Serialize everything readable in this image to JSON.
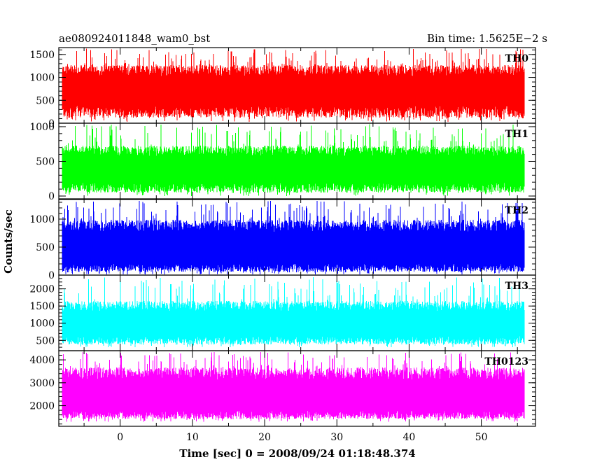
{
  "chart_data": {
    "type": "line",
    "title_left": "ae080924011848_wam0_bst",
    "title_right": "Bin time: 1.5625E−2 s",
    "xlabel": "Time [sec] 0 = 2008/09/24 01:18:48.374",
    "ylabel": "Counts/sec",
    "xlim": [
      -8.5,
      57.5
    ],
    "x_range": [
      -8,
      56
    ],
    "x_ticks": [
      0,
      10,
      20,
      30,
      40,
      50
    ],
    "x_tick_labels": [
      "0",
      "10",
      "20",
      "30",
      "40",
      "50"
    ],
    "colors": [
      "#ff0000",
      "#00ff00",
      "#0000ff",
      "#00ffff",
      "#ff00ff"
    ],
    "panels": [
      {
        "name": "TH0",
        "ylim": [
          0,
          1650
        ],
        "y_ticks": [
          0,
          500,
          1000,
          1500
        ],
        "y_tick_labels": [
          "0",
          "500",
          "1000",
          "1500"
        ],
        "mean": 750,
        "low": 250,
        "high": 1150,
        "min": 30,
        "max": 1630
      },
      {
        "name": "TH1",
        "ylim": [
          -40,
          1050
        ],
        "y_ticks": [
          0,
          500,
          1000
        ],
        "y_tick_labels": [
          "0",
          "500",
          "1000"
        ],
        "mean": 400,
        "low": 120,
        "high": 650,
        "min": 0,
        "max": 1040
      },
      {
        "name": "TH2",
        "ylim": [
          0,
          1350
        ],
        "y_ticks": [
          0,
          500,
          1000
        ],
        "y_tick_labels": [
          "0",
          "500",
          "1000"
        ],
        "mean": 520,
        "low": 130,
        "high": 880,
        "min": 10,
        "max": 1330
      },
      {
        "name": "TH3",
        "ylim": [
          200,
          2400
        ],
        "y_ticks": [
          500,
          1000,
          1500,
          2000
        ],
        "y_tick_labels": [
          "500",
          "1000",
          "1500",
          "2000"
        ],
        "mean": 1000,
        "low": 500,
        "high": 1500,
        "min": 300,
        "max": 2350
      },
      {
        "name": "TH0123",
        "ylim": [
          1100,
          4400
        ],
        "y_ticks": [
          2000,
          3000,
          4000
        ],
        "y_tick_labels": [
          "2000",
          "3000",
          "4000"
        ],
        "mean": 2500,
        "low": 1600,
        "high": 3400,
        "min": 1300,
        "max": 4350
      }
    ]
  }
}
